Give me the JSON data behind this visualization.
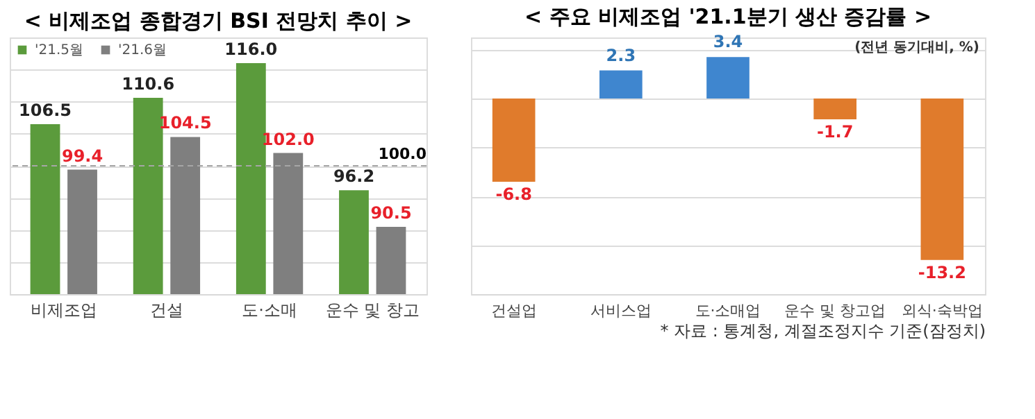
{
  "chart_data": [
    {
      "type": "bar",
      "title": "< 비제조업 종합경기 BSI 전망치 추이 >",
      "categories": [
        "비제조업",
        "건설",
        "도·소매",
        "운수 및 창고"
      ],
      "series": [
        {
          "name": "'21.5월",
          "color": "#5b9b3c",
          "values": [
            106.5,
            110.6,
            116.0,
            96.2
          ],
          "value_labels": [
            "106.5",
            "110.6",
            "116.0",
            "96.2"
          ]
        },
        {
          "name": "'21.6월",
          "color": "#7f7f7f",
          "values": [
            99.4,
            104.5,
            102.0,
            90.5
          ],
          "value_labels": [
            "99.4",
            "104.5",
            "102.0",
            "90.5"
          ]
        }
      ],
      "ylim": [
        80,
        120
      ],
      "yticks": [
        {
          "value": 80,
          "label": null
        },
        {
          "value": 85,
          "label": null
        },
        {
          "value": 90,
          "label": null
        },
        {
          "value": 95,
          "label": null
        },
        {
          "value": 100,
          "label": null
        },
        {
          "value": 105,
          "label": null
        },
        {
          "value": 110,
          "label": null
        },
        {
          "value": 115,
          "label": null
        },
        {
          "value": 120,
          "label": null
        }
      ],
      "grid": "y",
      "tick_labels": "x",
      "legend": "top left",
      "ref_lines": [
        {
          "axis": "y",
          "value": 100,
          "label": "100.0",
          "color": "#a6a6a6",
          "line_style": "dashed"
        }
      ]
    },
    {
      "type": "bar",
      "title": "< 주요 비제조업 '21.1분기 생산 증감률 >",
      "categories": [
        "건설업",
        "서비스업",
        "도·소매업",
        "운수 및 창고업",
        "외식·숙박업"
      ],
      "values": [
        -6.8,
        2.3,
        3.4,
        -1.7,
        -13.2
      ],
      "value_labels": [
        "-6.8",
        "2.3",
        "3.4",
        "-1.7",
        "-13.2"
      ],
      "colors": [
        "#e07b2c",
        "#3f86cf",
        "#3f86cf",
        "#e07b2c",
        "#e07b2c"
      ],
      "ylim": [
        -16,
        5
      ],
      "yticks": [
        {
          "value": -16,
          "label": null
        },
        {
          "value": -12,
          "label": null
        },
        {
          "value": -8,
          "label": null
        },
        {
          "value": -4,
          "label": null
        },
        {
          "value": 0,
          "label": null
        },
        {
          "value": 4,
          "label": null
        }
      ],
      "grid": "y",
      "tick_labels": "x",
      "annotations": [
        "(전년 동기대비, %)",
        "* 자료 : 통계청, 계절조정지수 기준(잠정치)"
      ]
    }
  ]
}
